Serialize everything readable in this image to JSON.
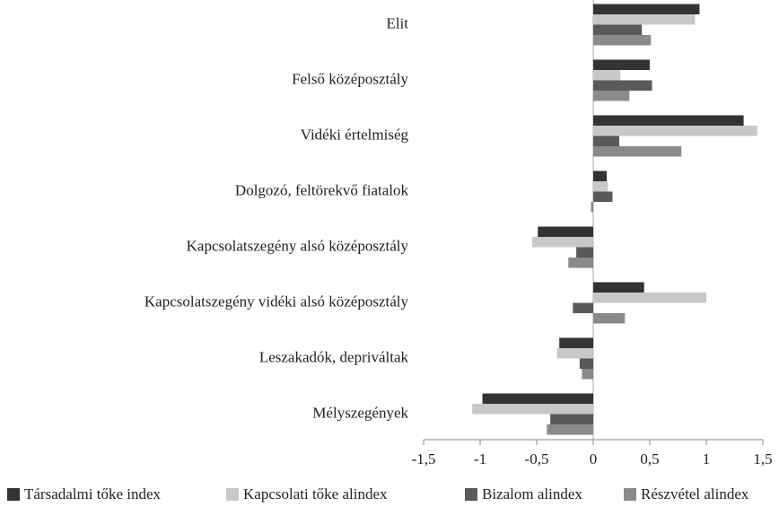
{
  "chart_data": {
    "type": "barh",
    "categories": [
      "Elit",
      "Felső középosztály",
      "Vidéki értelmiség",
      "Dolgozó, feltörekvő fiatalok",
      "Kapcsolatszegény alsó középosztály",
      "Kapcsolatszegény vidéki alsó középosztály",
      "Leszakadók, depriváltak",
      "Mélyszegények"
    ],
    "series": [
      {
        "name": "Társadalmi tőke index",
        "color": "#333333",
        "values": [
          0.94,
          0.5,
          1.33,
          0.12,
          -0.49,
          0.45,
          -0.3,
          -0.98
        ]
      },
      {
        "name": "Kapcsolati tőke alindex",
        "color": "#c8c8c8",
        "values": [
          0.9,
          0.24,
          1.45,
          0.13,
          -0.54,
          1.0,
          -0.32,
          -1.07
        ]
      },
      {
        "name": "Bizalom alindex",
        "color": "#595959",
        "values": [
          0.43,
          0.52,
          0.23,
          0.17,
          -0.15,
          -0.18,
          -0.12,
          -0.38
        ]
      },
      {
        "name": "Részvétel alindex",
        "color": "#8a8a8a",
        "values": [
          0.51,
          0.32,
          0.78,
          -0.02,
          -0.22,
          0.28,
          -0.1,
          -0.41
        ]
      }
    ],
    "xlim": [
      -1.5,
      1.5
    ],
    "xticks": [
      {
        "value": -1.5,
        "label": "-1,5"
      },
      -1,
      {
        "value": -0.5,
        "label": "-0,5"
      },
      0,
      {
        "value": 0.5,
        "label": "0,5"
      },
      1,
      {
        "value": 1.5,
        "label": "1,5"
      }
    ],
    "legend": "bottom"
  }
}
